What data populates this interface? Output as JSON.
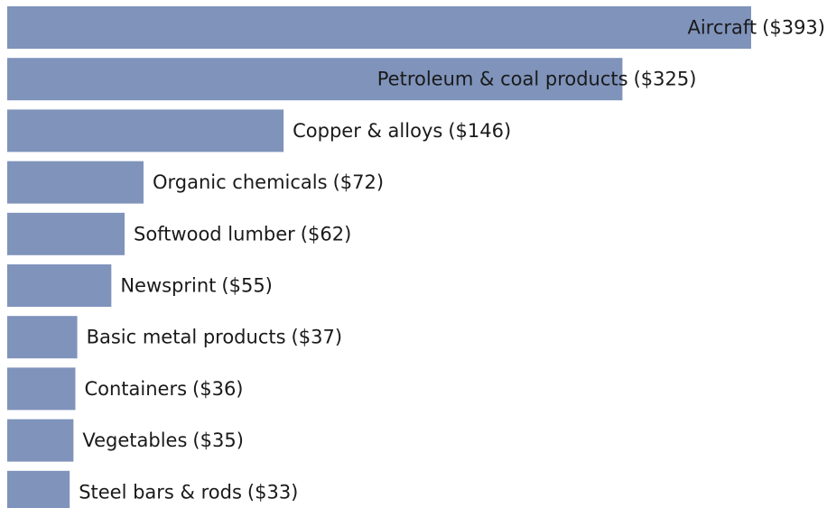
{
  "chart_data": {
    "type": "bar",
    "orientation": "horizontal",
    "color": "#7f93bb",
    "categories": [
      "Aircraft",
      "Petroleum & coal products",
      "Copper & alloys",
      "Organic chemicals",
      "Softwood lumber",
      "Newsprint",
      "Basic metal products",
      "Containers",
      "Vegetables",
      "Steel bars & rods"
    ],
    "values": [
      393,
      325,
      146,
      72,
      62,
      55,
      37,
      36,
      35,
      33
    ],
    "value_labels": [
      "($393)",
      "($325)",
      "($146)",
      "($72)",
      "($62)",
      "($55)",
      "($37)",
      "($36)",
      "($35)",
      "($33)"
    ]
  }
}
